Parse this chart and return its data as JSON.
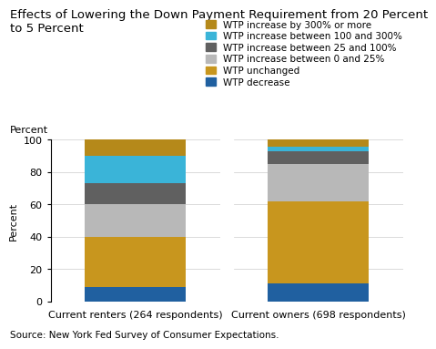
{
  "title": "Effects of Lowering the Down Payment Requirement from 20 Percent\nto 5 Percent",
  "categories": [
    "Current renters (264 respondents)",
    "Current owners (698 respondents)"
  ],
  "legend_labels": [
    "WTP increase by 300% or more",
    "WTP increase between 100 and 300%",
    "WTP increase between 25 and 100%",
    "WTP increase between 0 and 25%",
    "WTP unchanged",
    "WTP decrease"
  ],
  "colors": [
    "#b5891a",
    "#3ab4d8",
    "#606060",
    "#b8b8b8",
    "#c8961e",
    "#2060a0"
  ],
  "values": {
    "renters": [
      10,
      17,
      13,
      20,
      31,
      9
    ],
    "owners": [
      4,
      3,
      8,
      23,
      51,
      11
    ]
  },
  "ylabel": "Percent",
  "ylim": [
    0,
    100
  ],
  "yticks": [
    0,
    20,
    40,
    60,
    80,
    100
  ],
  "source": "Source: New York Fed Survey of Consumer Expectations.",
  "title_fontsize": 9.5,
  "label_fontsize": 8,
  "tick_fontsize": 8,
  "source_fontsize": 7.5,
  "legend_fontsize": 7.5
}
